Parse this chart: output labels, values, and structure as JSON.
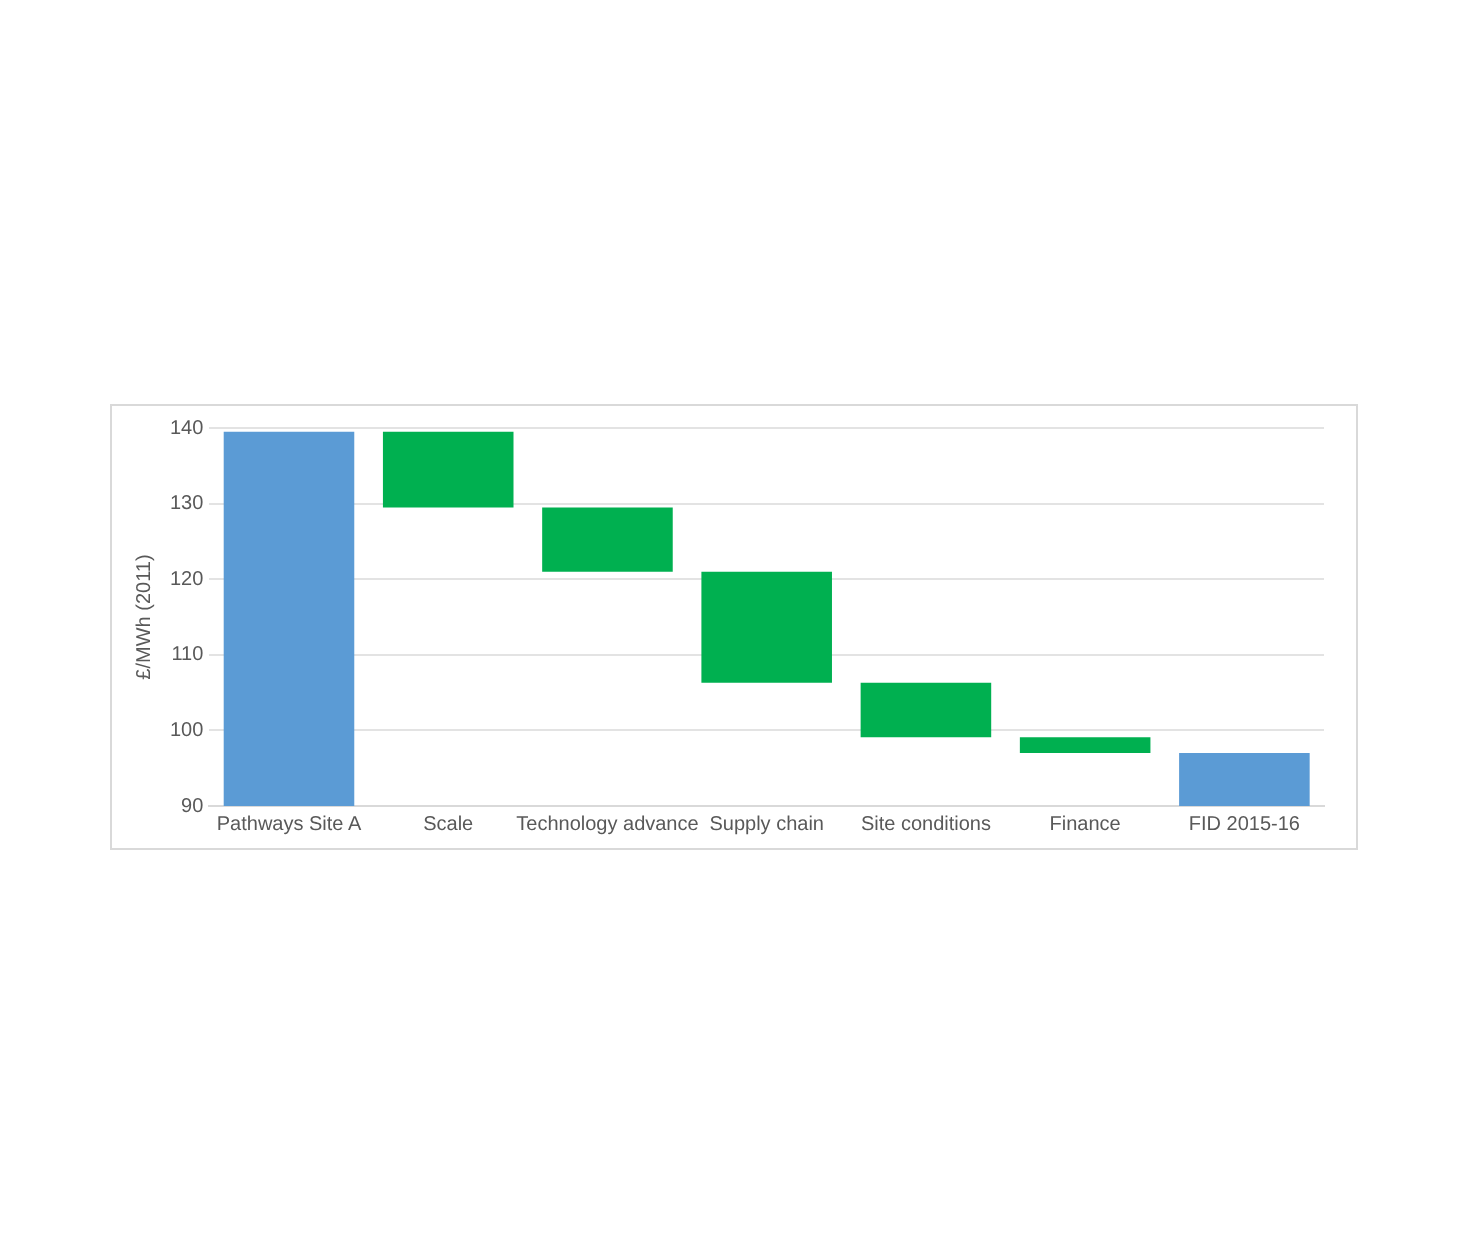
{
  "chart_data": {
    "type": "bar",
    "ylabel": "£/MWh (2011)",
    "categories": [
      "Pathways Site A",
      "Scale",
      "Technology advance",
      "Supply chain",
      "Site conditions",
      "Finance",
      "FID 2015-16"
    ],
    "values": [
      49.5,
      10,
      8.5,
      14.7,
      7.2,
      2.1,
      7
    ],
    "base": [
      90,
      129.5,
      121,
      106.3,
      99.1,
      97,
      90
    ],
    "colors": [
      "#5b9bd5",
      "#00b050",
      "#00b050",
      "#00b050",
      "#00b050",
      "#00b050",
      "#5b9bd5"
    ],
    "ylim": [
      90,
      140
    ],
    "yticks": [
      90,
      100,
      110,
      120,
      130,
      140
    ],
    "grid": "y",
    "legend": false
  }
}
